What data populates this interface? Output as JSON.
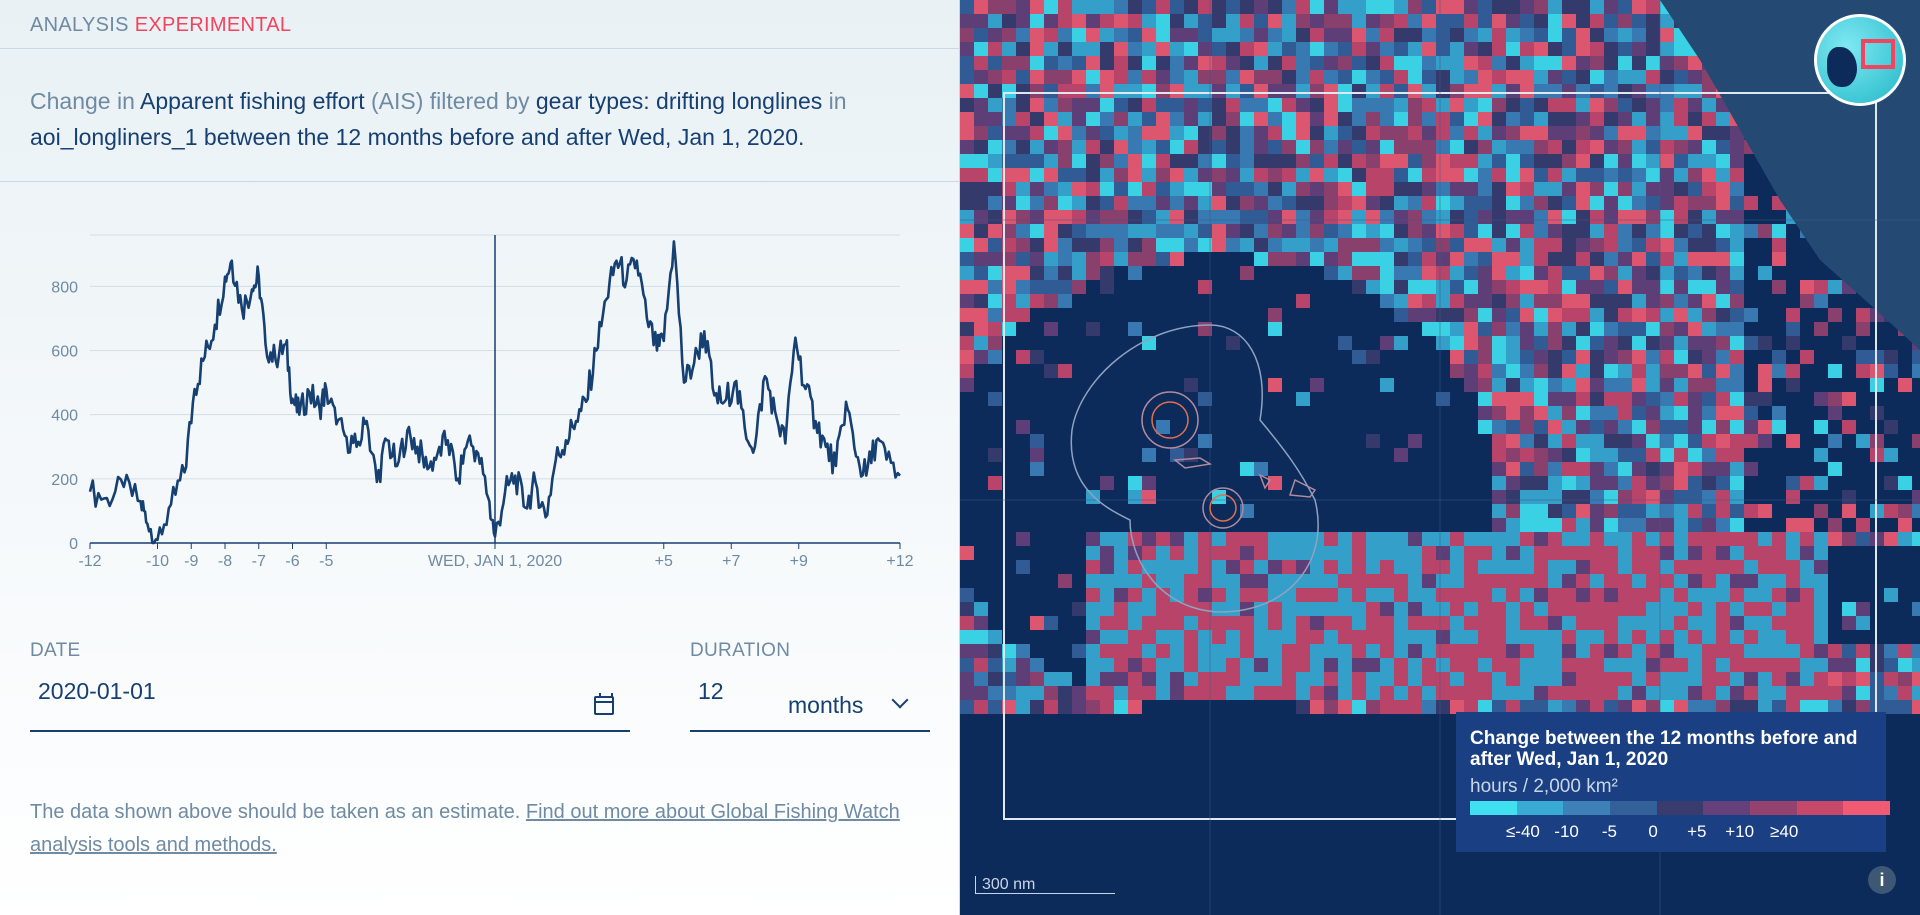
{
  "header": {
    "analysis": "ANALYSIS",
    "experimental": "EXPERIMENTAL"
  },
  "summary": {
    "p1": "Change in ",
    "dataset": "Apparent fishing effort",
    "p2": " (AIS) filtered by ",
    "filter": "gear types: drifting longlines",
    "p3": " in ",
    "area": "aoi_longliners_1 between the 12 months before and after Wed, Jan 1, 2020."
  },
  "chart_data": {
    "type": "line",
    "xlabel": "",
    "ylabel": "",
    "ylim": [
      0,
      960
    ],
    "xlim": [
      -12,
      12
    ],
    "yticks": [
      0,
      200,
      400,
      600,
      800
    ],
    "xticks": [
      {
        "v": -12,
        "label": "-12"
      },
      {
        "v": -10,
        "label": "-10"
      },
      {
        "v": -9,
        "label": "-9"
      },
      {
        "v": -8,
        "label": "-8"
      },
      {
        "v": -7,
        "label": "-7"
      },
      {
        "v": -6,
        "label": "-6"
      },
      {
        "v": -5,
        "label": "-5"
      },
      {
        "v": 0,
        "label": "WED, JAN 1, 2020"
      },
      {
        "v": 5,
        "label": "+5"
      },
      {
        "v": 7,
        "label": "+7"
      },
      {
        "v": 9,
        "label": "+9"
      },
      {
        "v": 12,
        "label": "+12"
      }
    ],
    "grid": true,
    "series": [
      {
        "x": [
          -12,
          -11.5,
          -11,
          -10.5,
          -10.3,
          -10,
          -9.6,
          -9.2,
          -8.9,
          -8.6,
          -8.3,
          -8,
          -7.8,
          -7.5,
          -7.2,
          -7,
          -6.8,
          -6.5,
          -6.2,
          -6,
          -5.8,
          -5.5,
          -5.2,
          -5,
          -4.7,
          -4.4,
          -4.1,
          -3.8,
          -3.5,
          -3.2,
          -2.9,
          -2.6,
          -2.3,
          -2,
          -1.7,
          -1.4,
          -1.1,
          -0.8,
          -0.5,
          -0.2,
          0,
          0.3,
          0.6,
          0.9,
          1.2,
          1.5,
          1.8,
          2.1,
          2.4,
          2.7,
          3,
          3.3,
          3.6,
          3.9,
          4.2,
          4.5,
          4.8,
          5,
          5.3,
          5.6,
          5.9,
          6.2,
          6.5,
          6.8,
          7.1,
          7.4,
          7.7,
          8,
          8.3,
          8.6,
          8.9,
          9.2,
          9.5,
          9.8,
          10.1,
          10.4,
          10.7,
          11,
          11.3,
          11.6,
          12
        ],
        "y": [
          160,
          140,
          175,
          130,
          60,
          10,
          120,
          220,
          480,
          580,
          680,
          830,
          880,
          730,
          790,
          830,
          620,
          570,
          620,
          450,
          400,
          470,
          420,
          480,
          370,
          330,
          300,
          380,
          190,
          320,
          240,
          350,
          300,
          230,
          280,
          320,
          200,
          320,
          280,
          140,
          20,
          160,
          210,
          110,
          190,
          80,
          260,
          320,
          380,
          440,
          600,
          760,
          880,
          820,
          880,
          700,
          600,
          630,
          940,
          500,
          560,
          660,
          460,
          440,
          500,
          360,
          300,
          520,
          410,
          310,
          640,
          480,
          380,
          300,
          240,
          440,
          270,
          210,
          320,
          260,
          210
        ]
      }
    ]
  },
  "date": {
    "label": "DATE",
    "value": "2020-01-01"
  },
  "duration": {
    "label": "DURATION",
    "value": "12",
    "unit": "months"
  },
  "disclaimer": {
    "text": "The data shown above should be taken as an estimate. ",
    "link": "Find out more about Global Fishing Watch analysis tools and methods."
  },
  "legend": {
    "title": "Change between the 12 months before and after Wed, Jan 1, 2020",
    "unit": "hours / 2,000 km²",
    "colors": [
      "#40e0f0",
      "#38aad4",
      "#3e80b8",
      "#34609a",
      "#3a3c6e",
      "#66407a",
      "#96426e",
      "#c8486a",
      "#f05a72"
    ],
    "ticks": [
      "≤-40",
      "-10",
      "-5",
      "0",
      "+5",
      "+10",
      "≥40"
    ]
  },
  "map": {
    "scale": "300 nm",
    "info": "i"
  }
}
